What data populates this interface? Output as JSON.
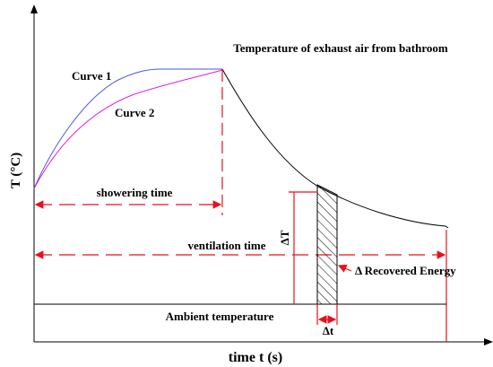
{
  "title": "Temperature of exhaust air from bathroom",
  "axes": {
    "y_label": "T (°C)",
    "x_label": "time t (s)"
  },
  "curves": {
    "curve1_label": "Curve 1",
    "curve2_label": "Curve 2",
    "curve1_color": "#4a55e0",
    "curve2_color": "#e020e0",
    "decay_color": "#000000"
  },
  "annotations": {
    "showering_time": "showering time",
    "ventilation_time": "ventilation time",
    "delta_T": "ΔT",
    "recovered_energy": "Δ Recovered Energy",
    "ambient": "Ambient temperature",
    "delta_t": "Δt"
  },
  "colors": {
    "dimension_lines": "#e8101a",
    "axes": "#000000"
  }
}
